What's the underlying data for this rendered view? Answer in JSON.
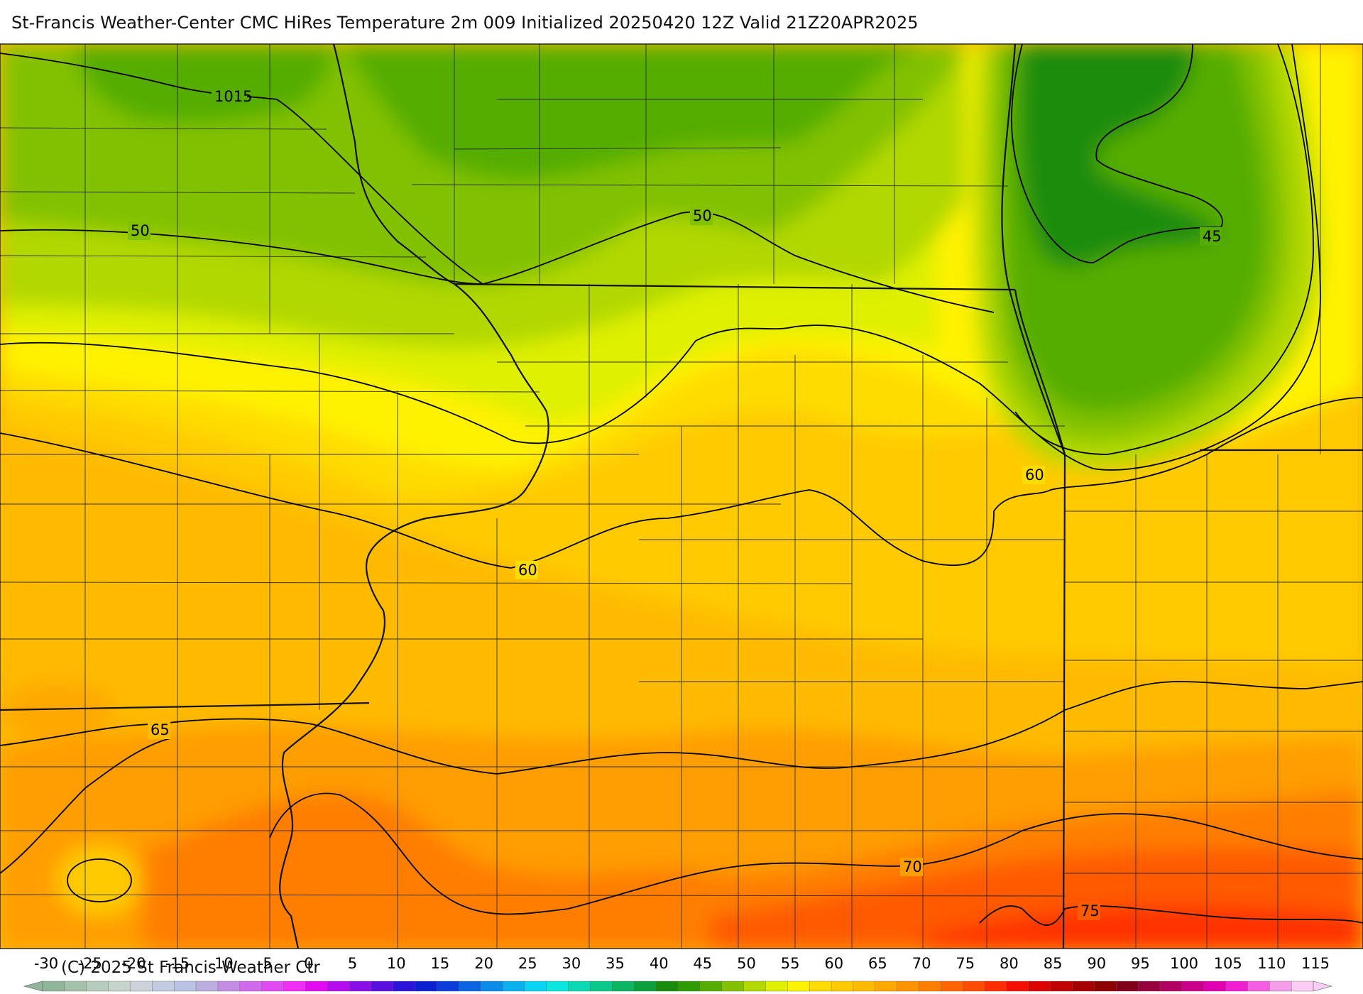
{
  "title": "St-Francis Weather-Center CMC HiRes Temperature 2m  009 Initialized 20250420 12Z Valid 21Z20APR2025",
  "copyright": "(C) 2025 St Francis Weather Ctr",
  "contour_labels": [
    "1015",
    "50",
    "50",
    "45",
    "60",
    "60",
    "65",
    "70",
    "75"
  ],
  "colorbar": {
    "ticks": [
      "-30",
      "-25",
      "-20",
      "-15",
      "-10",
      "-5",
      "0",
      "5",
      "10",
      "15",
      "20",
      "25",
      "30",
      "35",
      "40",
      "45",
      "50",
      "55",
      "60",
      "65",
      "70",
      "75",
      "80",
      "85",
      "90",
      "95",
      "100",
      "105",
      "110",
      "115"
    ],
    "colors": [
      "#8fb59b",
      "#a4c2ab",
      "#b7cdbb",
      "#c6d4cc",
      "#cdd3dc",
      "#c3cbe0",
      "#b9c3e3",
      "#bcaede",
      "#c38de6",
      "#d169ec",
      "#e04af0",
      "#ef2ff3",
      "#e10cf2",
      "#b40ced",
      "#8a0fe7",
      "#5b0fde",
      "#2b13d8",
      "#0b1fd3",
      "#0b3ddb",
      "#0b64e2",
      "#0b8ce9",
      "#0bb0ee",
      "#0bd3f2",
      "#0be6de",
      "#0bd9b4",
      "#0bc98a",
      "#0bb562",
      "#0ca03d",
      "#1a8c0c",
      "#2f9c05",
      "#55ad03",
      "#82c100",
      "#b1d800",
      "#dff000",
      "#fff200",
      "#ffdc00",
      "#ffcb00",
      "#ffbb00",
      "#ffa800",
      "#ff9300",
      "#ff7e00",
      "#ff6500",
      "#ff4c00",
      "#ff2c00",
      "#f50f00",
      "#dc0000",
      "#c10000",
      "#a60000",
      "#8c0000",
      "#7f0018",
      "#96003c",
      "#b10062",
      "#c9008a",
      "#e000b0",
      "#ef1ed0",
      "#f35fe0",
      "#f79ceb",
      "#fbccf4"
    ]
  }
}
